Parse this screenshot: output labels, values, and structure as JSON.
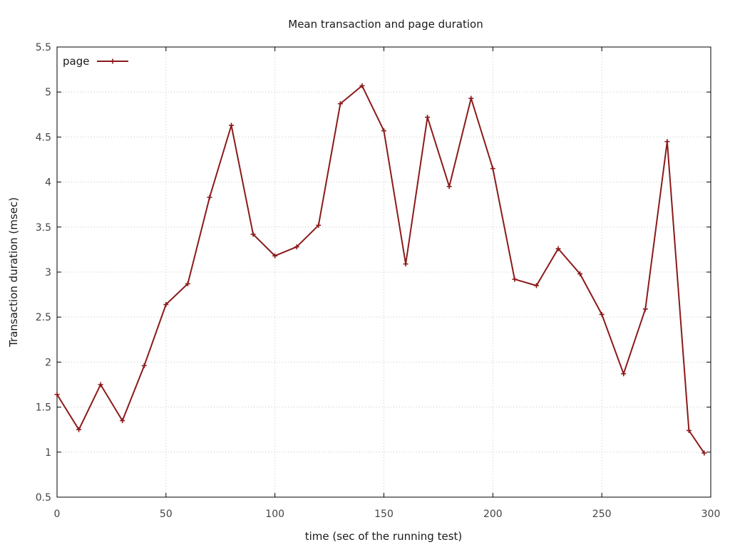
{
  "chart_data": {
    "type": "line",
    "title": "Mean transaction and page duration",
    "xlabel": "time (sec of the running test)",
    "ylabel": "Transaction duration (msec)",
    "xlim": [
      0,
      300
    ],
    "ylim": [
      0.5,
      5.5
    ],
    "xticks": [
      "0",
      "50",
      "100",
      "150",
      "200",
      "250",
      "300"
    ],
    "yticks": [
      "0.5",
      "1",
      "1.5",
      "2",
      "2.5",
      "3",
      "3.5",
      "4",
      "4.5",
      "5",
      "5.5"
    ],
    "grid": true,
    "legend_position": "top-left",
    "series": [
      {
        "name": "page",
        "color": "#8b1a1a",
        "marker": "cross",
        "x": [
          0,
          10,
          20,
          30,
          40,
          50,
          60,
          70,
          80,
          90,
          100,
          110,
          120,
          130,
          140,
          150,
          160,
          170,
          180,
          190,
          200,
          210,
          220,
          230,
          240,
          250,
          260,
          270,
          280,
          290,
          297
        ],
        "y": [
          1.64,
          1.25,
          1.75,
          1.35,
          1.96,
          2.64,
          2.87,
          3.83,
          4.63,
          3.42,
          3.18,
          3.28,
          3.52,
          4.87,
          5.07,
          4.57,
          3.09,
          4.72,
          3.95,
          4.93,
          4.15,
          2.92,
          2.85,
          3.26,
          2.98,
          2.53,
          1.87,
          2.59,
          4.45,
          1.24,
          0.99
        ]
      }
    ]
  }
}
